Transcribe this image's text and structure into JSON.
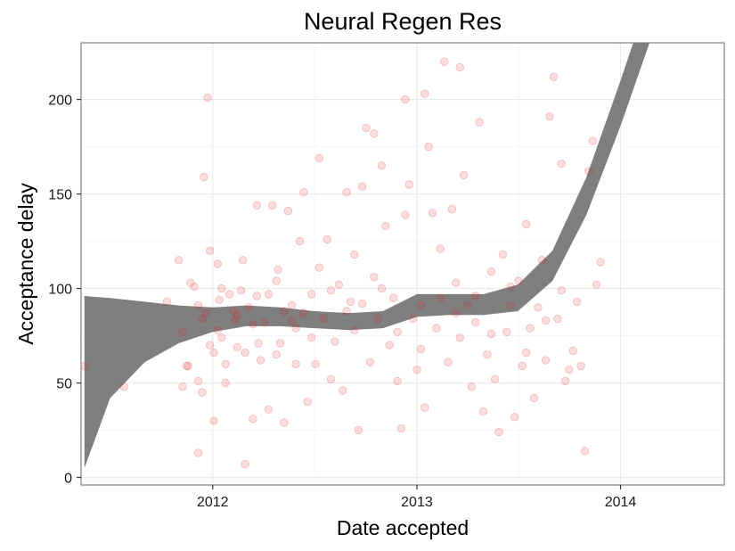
{
  "chart_data": {
    "type": "scatter",
    "title": "Neural Regen Res",
    "xlabel": "Date accepted",
    "ylabel": "Acceptance delay",
    "x_axis_type": "date",
    "xlim": [
      "2011-05-10",
      "2014-07-06"
    ],
    "ylim": [
      -4,
      230
    ],
    "x_ticks": [
      "2012-01-01",
      "2013-01-01",
      "2014-01-01"
    ],
    "x_tick_labels": [
      "2012",
      "2013",
      "2014"
    ],
    "y_ticks": [
      0,
      50,
      100,
      150,
      200
    ],
    "y_tick_labels": [
      "0",
      "50",
      "100",
      "150",
      "200"
    ],
    "grid": true,
    "legend": "none",
    "colors": {
      "points": "#e31a1c",
      "band": "#7f7f7f",
      "grid_major": "#ebebeb",
      "grid_minor": "#f5f5f5",
      "panel_border": "#7f7f7f"
    },
    "point_opacity": 0.15,
    "series": [
      {
        "type": "scatter",
        "points": [
          [
            "2011-05-16",
            59
          ],
          [
            "2011-07-26",
            48
          ],
          [
            "2011-10-11",
            93
          ],
          [
            "2011-11-01",
            115
          ],
          [
            "2011-11-08",
            48
          ],
          [
            "2011-11-08",
            77
          ],
          [
            "2011-11-15",
            59
          ],
          [
            "2011-11-18",
            59
          ],
          [
            "2011-11-22",
            103
          ],
          [
            "2011-11-29",
            101
          ],
          [
            "2011-12-06",
            13
          ],
          [
            "2011-12-06",
            91
          ],
          [
            "2011-12-06",
            51
          ],
          [
            "2011-12-13",
            45
          ],
          [
            "2011-12-13",
            84
          ],
          [
            "2011-12-16",
            159
          ],
          [
            "2011-12-20",
            87
          ],
          [
            "2011-12-23",
            201
          ],
          [
            "2011-12-27",
            120
          ],
          [
            "2011-12-27",
            70
          ],
          [
            "2012-01-03",
            30
          ],
          [
            "2012-01-03",
            66
          ],
          [
            "2012-01-10",
            113
          ],
          [
            "2012-01-10",
            78
          ],
          [
            "2012-01-13",
            94
          ],
          [
            "2012-01-17",
            74
          ],
          [
            "2012-01-24",
            60
          ],
          [
            "2012-01-24",
            50
          ],
          [
            "2012-01-31",
            97
          ],
          [
            "2012-02-07",
            88
          ],
          [
            "2012-02-10",
            83
          ],
          [
            "2012-02-14",
            69
          ],
          [
            "2012-02-21",
            99
          ],
          [
            "2012-02-24",
            115
          ],
          [
            "2012-02-28",
            7
          ],
          [
            "2012-02-28",
            66
          ],
          [
            "2012-03-06",
            90
          ],
          [
            "2012-03-13",
            31
          ],
          [
            "2012-03-13",
            81
          ],
          [
            "2012-03-20",
            144
          ],
          [
            "2012-03-23",
            71
          ],
          [
            "2012-03-27",
            62
          ],
          [
            "2012-04-03",
            82
          ],
          [
            "2012-04-10",
            36
          ],
          [
            "2012-04-10",
            97
          ],
          [
            "2012-04-17",
            144
          ],
          [
            "2012-04-24",
            65
          ],
          [
            "2012-04-27",
            110
          ],
          [
            "2012-05-01",
            71
          ],
          [
            "2012-05-08",
            88
          ],
          [
            "2012-05-08",
            29
          ],
          [
            "2012-05-15",
            141
          ],
          [
            "2012-05-22",
            91
          ],
          [
            "2012-05-29",
            79
          ],
          [
            "2012-05-29",
            60
          ],
          [
            "2012-06-05",
            125
          ],
          [
            "2012-06-12",
            87
          ],
          [
            "2012-06-12",
            151
          ],
          [
            "2012-06-19",
            40
          ],
          [
            "2012-06-26",
            97
          ],
          [
            "2012-07-03",
            60
          ],
          [
            "2012-07-10",
            169
          ],
          [
            "2012-07-10",
            111
          ],
          [
            "2012-07-17",
            84
          ],
          [
            "2012-07-24",
            126
          ],
          [
            "2012-07-31",
            52
          ],
          [
            "2012-08-07",
            72
          ],
          [
            "2012-08-14",
            102
          ],
          [
            "2012-08-21",
            46
          ],
          [
            "2012-08-28",
            151
          ],
          [
            "2012-09-04",
            93
          ],
          [
            "2012-09-11",
            78
          ],
          [
            "2012-09-11",
            118
          ],
          [
            "2012-09-18",
            25
          ],
          [
            "2012-09-25",
            154
          ],
          [
            "2012-10-02",
            185
          ],
          [
            "2012-10-09",
            61
          ],
          [
            "2012-10-16",
            106
          ],
          [
            "2012-10-16",
            182
          ],
          [
            "2012-10-23",
            84
          ],
          [
            "2012-10-30",
            165
          ],
          [
            "2012-11-06",
            133
          ],
          [
            "2012-11-13",
            70
          ],
          [
            "2012-11-20",
            95
          ],
          [
            "2012-11-27",
            51
          ],
          [
            "2012-12-04",
            26
          ],
          [
            "2012-12-11",
            200
          ],
          [
            "2012-12-11",
            139
          ],
          [
            "2012-12-18",
            155
          ],
          [
            "2012-12-25",
            84
          ],
          [
            "2013-01-01",
            57
          ],
          [
            "2013-01-08",
            91
          ],
          [
            "2013-01-15",
            203
          ],
          [
            "2013-01-15",
            37
          ],
          [
            "2013-01-22",
            175
          ],
          [
            "2013-01-29",
            140
          ],
          [
            "2013-02-05",
            79
          ],
          [
            "2013-02-12",
            121
          ],
          [
            "2013-02-19",
            220
          ],
          [
            "2013-02-26",
            61
          ],
          [
            "2013-03-05",
            142
          ],
          [
            "2013-03-12",
            103
          ],
          [
            "2013-03-19",
            217
          ],
          [
            "2013-03-19",
            74
          ],
          [
            "2013-03-26",
            160
          ],
          [
            "2013-04-02",
            91
          ],
          [
            "2013-04-09",
            48
          ],
          [
            "2013-04-16",
            82
          ],
          [
            "2013-04-23",
            188
          ],
          [
            "2013-04-30",
            35
          ],
          [
            "2013-05-07",
            65
          ],
          [
            "2013-05-14",
            109
          ],
          [
            "2013-05-21",
            52
          ],
          [
            "2013-05-28",
            24
          ],
          [
            "2013-06-04",
            118
          ],
          [
            "2013-06-11",
            77
          ],
          [
            "2013-06-18",
            91
          ],
          [
            "2013-06-25",
            32
          ],
          [
            "2013-07-02",
            104
          ],
          [
            "2013-07-09",
            59
          ],
          [
            "2013-07-16",
            134
          ],
          [
            "2013-07-23",
            79
          ],
          [
            "2013-07-30",
            42
          ],
          [
            "2013-08-06",
            90
          ],
          [
            "2013-08-13",
            115
          ],
          [
            "2013-08-20",
            62
          ],
          [
            "2013-08-27",
            191
          ],
          [
            "2013-09-03",
            212
          ],
          [
            "2013-09-10",
            84
          ],
          [
            "2013-09-17",
            166
          ],
          [
            "2013-09-24",
            51
          ],
          [
            "2013-10-01",
            57
          ],
          [
            "2013-10-08",
            67
          ],
          [
            "2013-10-15",
            93
          ],
          [
            "2013-10-22",
            59
          ],
          [
            "2013-10-29",
            14
          ],
          [
            "2013-11-05",
            162
          ],
          [
            "2013-11-12",
            178
          ],
          [
            "2013-11-19",
            102
          ],
          [
            "2013-11-26",
            114
          ],
          [
            "2012-01-17",
            100
          ],
          [
            "2012-02-14",
            86
          ],
          [
            "2012-03-20",
            96
          ],
          [
            "2012-04-24",
            104
          ],
          [
            "2012-05-22",
            83
          ],
          [
            "2012-06-26",
            74
          ],
          [
            "2012-07-31",
            99
          ],
          [
            "2012-08-28",
            88
          ],
          [
            "2012-09-25",
            92
          ],
          [
            "2012-10-30",
            100
          ],
          [
            "2012-11-27",
            77
          ],
          [
            "2013-01-08",
            68
          ],
          [
            "2013-02-12",
            95
          ],
          [
            "2013-03-12",
            87
          ],
          [
            "2013-04-16",
            96
          ],
          [
            "2013-05-14",
            76
          ],
          [
            "2013-06-18",
            101
          ],
          [
            "2013-07-16",
            66
          ],
          [
            "2013-08-20",
            83
          ],
          [
            "2013-09-17",
            99
          ]
        ]
      },
      {
        "type": "ribbon",
        "name": "",
        "x": [
          "2011-05-16",
          "2011-07-01",
          "2011-09-01",
          "2011-11-01",
          "2012-01-01",
          "2012-03-01",
          "2012-05-01",
          "2012-07-01",
          "2012-09-01",
          "2012-11-01",
          "2013-01-01",
          "2013-03-01",
          "2013-05-01",
          "2013-07-01",
          "2013-09-01",
          "2013-11-01",
          "2014-01-01",
          "2014-03-01"
        ],
        "lower": [
          5,
          42,
          61,
          71,
          77,
          80,
          80,
          79,
          78,
          79,
          85,
          86,
          86,
          88,
          104,
          139,
          186,
          236
        ],
        "upper": [
          96,
          95,
          93,
          91,
          90,
          91,
          90,
          88,
          87,
          88,
          97,
          97,
          97,
          102,
          120,
          159,
          210,
          262
        ]
      }
    ]
  }
}
